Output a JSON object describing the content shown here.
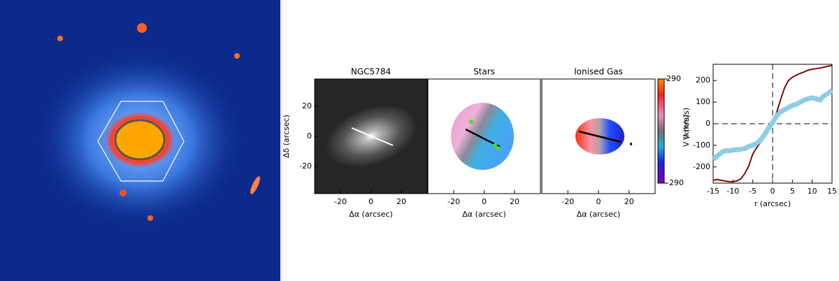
{
  "chart_data": [
    {
      "type": "image",
      "title": "NGC5784",
      "xlabel": "Δα (arcsec)",
      "ylabel": "Δδ (arcsec)",
      "xlim": [
        -37,
        37
      ],
      "ylim": [
        -38,
        38
      ],
      "xticks": [
        -20,
        0,
        20
      ],
      "yticks": [
        -20,
        0,
        20
      ]
    },
    {
      "type": "image",
      "title": "Stars",
      "xlabel": "Δα  (arcsec)",
      "xlim": [
        -37,
        37
      ],
      "xticks": [
        -20,
        0,
        20
      ]
    },
    {
      "type": "image",
      "title": "Ionised Gas",
      "xlabel": "Δα  (arcsec)",
      "xlim": [
        -37,
        37
      ],
      "xticks": [
        -20,
        0,
        20
      ],
      "colorbar": {
        "label": "V (km/s)",
        "clim": [
          -290,
          290
        ],
        "ticks": [
          -290,
          290
        ]
      }
    },
    {
      "type": "line",
      "xlabel": "r (arcsec)",
      "ylabel": "V (km/s)",
      "xlim": [
        -15,
        15
      ],
      "ylim": [
        -275,
        275
      ],
      "xticks": [
        -15,
        -10,
        -5,
        0,
        5,
        10,
        15
      ],
      "yticks": [
        -200,
        -100,
        0,
        100,
        200
      ],
      "hlines": [
        0
      ],
      "vlines": [
        0
      ],
      "x": [
        -15,
        -14,
        -13,
        -12,
        -11,
        -10,
        -9,
        -8,
        -7,
        -6,
        -5,
        -4,
        -3,
        -2,
        -1,
        0,
        1,
        2,
        3,
        4,
        5,
        6,
        7,
        8,
        9,
        10,
        11,
        12,
        13,
        14,
        15
      ],
      "series": [
        {
          "color": "#7a0c0c",
          "width": 2,
          "values": [
            -262,
            -258,
            -262,
            -265,
            -268,
            -268,
            -265,
            -255,
            -230,
            -195,
            -140,
            -110,
            -85,
            -55,
            -25,
            10,
            50,
            110,
            165,
            200,
            215,
            225,
            233,
            240,
            248,
            252,
            255,
            258,
            262,
            266,
            270
          ]
        },
        {
          "color": "#8ecde6",
          "width": 7,
          "values": [
            -165,
            -150,
            -135,
            -125,
            -125,
            -122,
            -120,
            -118,
            -115,
            -105,
            -100,
            -90,
            -75,
            -50,
            -20,
            5,
            35,
            55,
            65,
            75,
            85,
            90,
            100,
            110,
            115,
            120,
            115,
            110,
            130,
            140,
            155
          ]
        }
      ]
    }
  ]
}
